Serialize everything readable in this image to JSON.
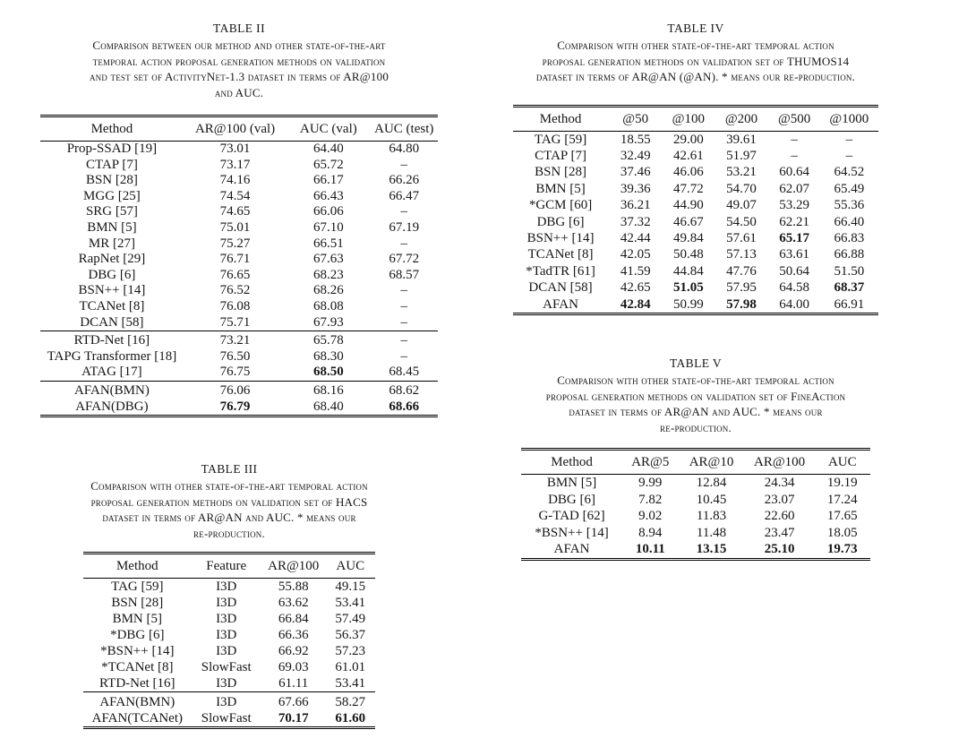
{
  "page": {
    "background": "#ffffff",
    "text_color": "#161616",
    "rule_color": "#000000"
  },
  "tables": [
    {
      "id": "table-ii",
      "title": "TABLE II",
      "caption_lines": [
        "Comparison between our method and other state-of-the-art",
        "temporal action proposal generation methods on validation",
        "and test set of ActivityNet-1.3 dataset in terms of AR@100",
        "and AUC."
      ],
      "columns": [
        "Method",
        "AR@100 (val)",
        "AUC (val)",
        "AUC (test)"
      ],
      "col_widths": [
        "36%",
        "26%",
        "21%",
        "17%"
      ],
      "groups": [
        [
          [
            "Prop-SSAD [19]",
            "73.01",
            "64.40",
            "64.80"
          ],
          [
            "CTAP [7]",
            "73.17",
            "65.72",
            "–"
          ],
          [
            "BSN [28]",
            "74.16",
            "66.17",
            "66.26"
          ],
          [
            "MGG [25]",
            "74.54",
            "66.43",
            "66.47"
          ],
          [
            "SRG [57]",
            "74.65",
            "66.06",
            "–"
          ],
          [
            "BMN [5]",
            "75.01",
            "67.10",
            "67.19"
          ],
          [
            "MR [27]",
            "75.27",
            "66.51",
            "–"
          ],
          [
            "RapNet [29]",
            "76.71",
            "67.63",
            "67.72"
          ],
          [
            "DBG [6]",
            "76.65",
            "68.23",
            "68.57"
          ],
          [
            "BSN++ [14]",
            "76.52",
            "68.26",
            "–"
          ],
          [
            "TCANet [8]",
            "76.08",
            "68.08",
            "–"
          ],
          [
            "DCAN [58]",
            "75.71",
            "67.93",
            "–"
          ]
        ],
        [
          [
            "RTD-Net [16]",
            "73.21",
            "65.78",
            "–"
          ],
          [
            "TAPG Transformer [18]",
            "76.50",
            "68.30",
            "–"
          ],
          [
            "ATAG [17]",
            "76.75",
            {
              "t": "68.50",
              "b": 1
            },
            "68.45"
          ]
        ],
        [
          [
            "AFAN(BMN)",
            "76.06",
            "68.16",
            "68.62"
          ],
          [
            "AFAN(DBG)",
            {
              "t": "76.79",
              "b": 1
            },
            "68.40",
            {
              "t": "68.66",
              "b": 1
            }
          ]
        ]
      ]
    },
    {
      "id": "table-iii",
      "title": "TABLE III",
      "caption_lines": [
        "Comparison with other state-of-the-art temporal action",
        "proposal generation methods on validation set of HACS",
        "dataset in terms of AR@AN and AUC. * means our",
        "re-production."
      ],
      "columns": [
        "Method",
        "Feature",
        "AR@100",
        "AUC"
      ],
      "col_widths": [
        "37%",
        "24%",
        "22%",
        "17%"
      ],
      "groups": [
        [
          [
            "TAG [59]",
            "I3D",
            "55.88",
            "49.15"
          ],
          [
            "BSN [28]",
            "I3D",
            "63.62",
            "53.41"
          ],
          [
            "BMN [5]",
            "I3D",
            "66.84",
            "57.49"
          ],
          [
            "*DBG [6]",
            "I3D",
            "66.36",
            "56.37"
          ],
          [
            "*BSN++ [14]",
            "I3D",
            "66.92",
            "57.23"
          ],
          [
            "*TCANet [8]",
            "SlowFast",
            "69.03",
            "61.01"
          ],
          [
            "RTD-Net [16]",
            "I3D",
            "61.11",
            "53.41"
          ]
        ],
        [
          [
            "AFAN(BMN)",
            "I3D",
            "67.66",
            "58.27"
          ],
          [
            "AFAN(TCANet)",
            "SlowFast",
            {
              "t": "70.17",
              "b": 1
            },
            {
              "t": "61.60",
              "b": 1
            }
          ]
        ]
      ]
    },
    {
      "id": "table-iv",
      "title": "TABLE IV",
      "caption_lines": [
        "Comparison with other state-of-the-art temporal action",
        "proposal generation methods on validation set of THUMOS14",
        "dataset in terms of AR@AN (@AN). * means our re-production."
      ],
      "columns": [
        "Method",
        "@50",
        "@100",
        "@200",
        "@500",
        "@1000"
      ],
      "col_widths": [
        "26%",
        "15%",
        "14%",
        "15%",
        "14%",
        "16%"
      ],
      "groups": [
        [
          [
            "TAG [59]",
            "18.55",
            "29.00",
            "39.61",
            "–",
            "–"
          ],
          [
            "CTAP [7]",
            "32.49",
            "42.61",
            "51.97",
            "–",
            "–"
          ],
          [
            "BSN [28]",
            "37.46",
            "46.06",
            "53.21",
            "60.64",
            "64.52"
          ],
          [
            "BMN [5]",
            "39.36",
            "47.72",
            "54.70",
            "62.07",
            "65.49"
          ],
          [
            "*GCM [60]",
            "36.21",
            "44.90",
            "49.07",
            "53.29",
            "55.36"
          ],
          [
            "DBG [6]",
            "37.32",
            "46.67",
            "54.50",
            "62.21",
            "66.40"
          ],
          [
            "BSN++ [14]",
            "42.44",
            "49.84",
            "57.61",
            {
              "t": "65.17",
              "b": 1
            },
            "66.83"
          ],
          [
            "TCANet [8]",
            "42.05",
            "50.48",
            "57.13",
            "63.61",
            "66.88"
          ],
          [
            "*TadTR [61]",
            "41.59",
            "44.84",
            "47.76",
            "50.64",
            "51.50"
          ],
          [
            "DCAN [58]",
            "42.65",
            {
              "t": "51.05",
              "b": 1
            },
            "57.95",
            "64.58",
            {
              "t": "68.37",
              "b": 1
            }
          ],
          [
            "AFAN",
            {
              "t": "42.84",
              "b": 1
            },
            "50.99",
            {
              "t": "57.98",
              "b": 1
            },
            "64.00",
            "66.91"
          ]
        ]
      ]
    },
    {
      "id": "table-v",
      "title": "TABLE V",
      "caption_lines": [
        "Comparison with other state-of-the-art temporal action",
        "proposal generation methods on validation set of FineAction",
        "dataset in terms of AR@AN and AUC. * means our",
        "re-production."
      ],
      "columns": [
        "Method",
        "AR@5",
        "AR@10",
        "AR@100",
        "AUC"
      ],
      "col_widths": [
        "29%",
        "16%",
        "19%",
        "20%",
        "16%"
      ],
      "groups": [
        [
          [
            "BMN [5]",
            "9.99",
            "12.84",
            "24.34",
            "19.19"
          ],
          [
            "DBG [6]",
            "7.82",
            "10.45",
            "23.07",
            "17.24"
          ],
          [
            "G-TAD [62]",
            "9.02",
            "11.83",
            "22.60",
            "17.65"
          ],
          [
            "*BSN++ [14]",
            "8.94",
            "11.48",
            "23.47",
            "18.05"
          ],
          [
            "AFAN",
            {
              "t": "10.11",
              "b": 1
            },
            {
              "t": "13.15",
              "b": 1
            },
            {
              "t": "25.10",
              "b": 1
            },
            {
              "t": "19.73",
              "b": 1
            }
          ]
        ]
      ]
    }
  ]
}
